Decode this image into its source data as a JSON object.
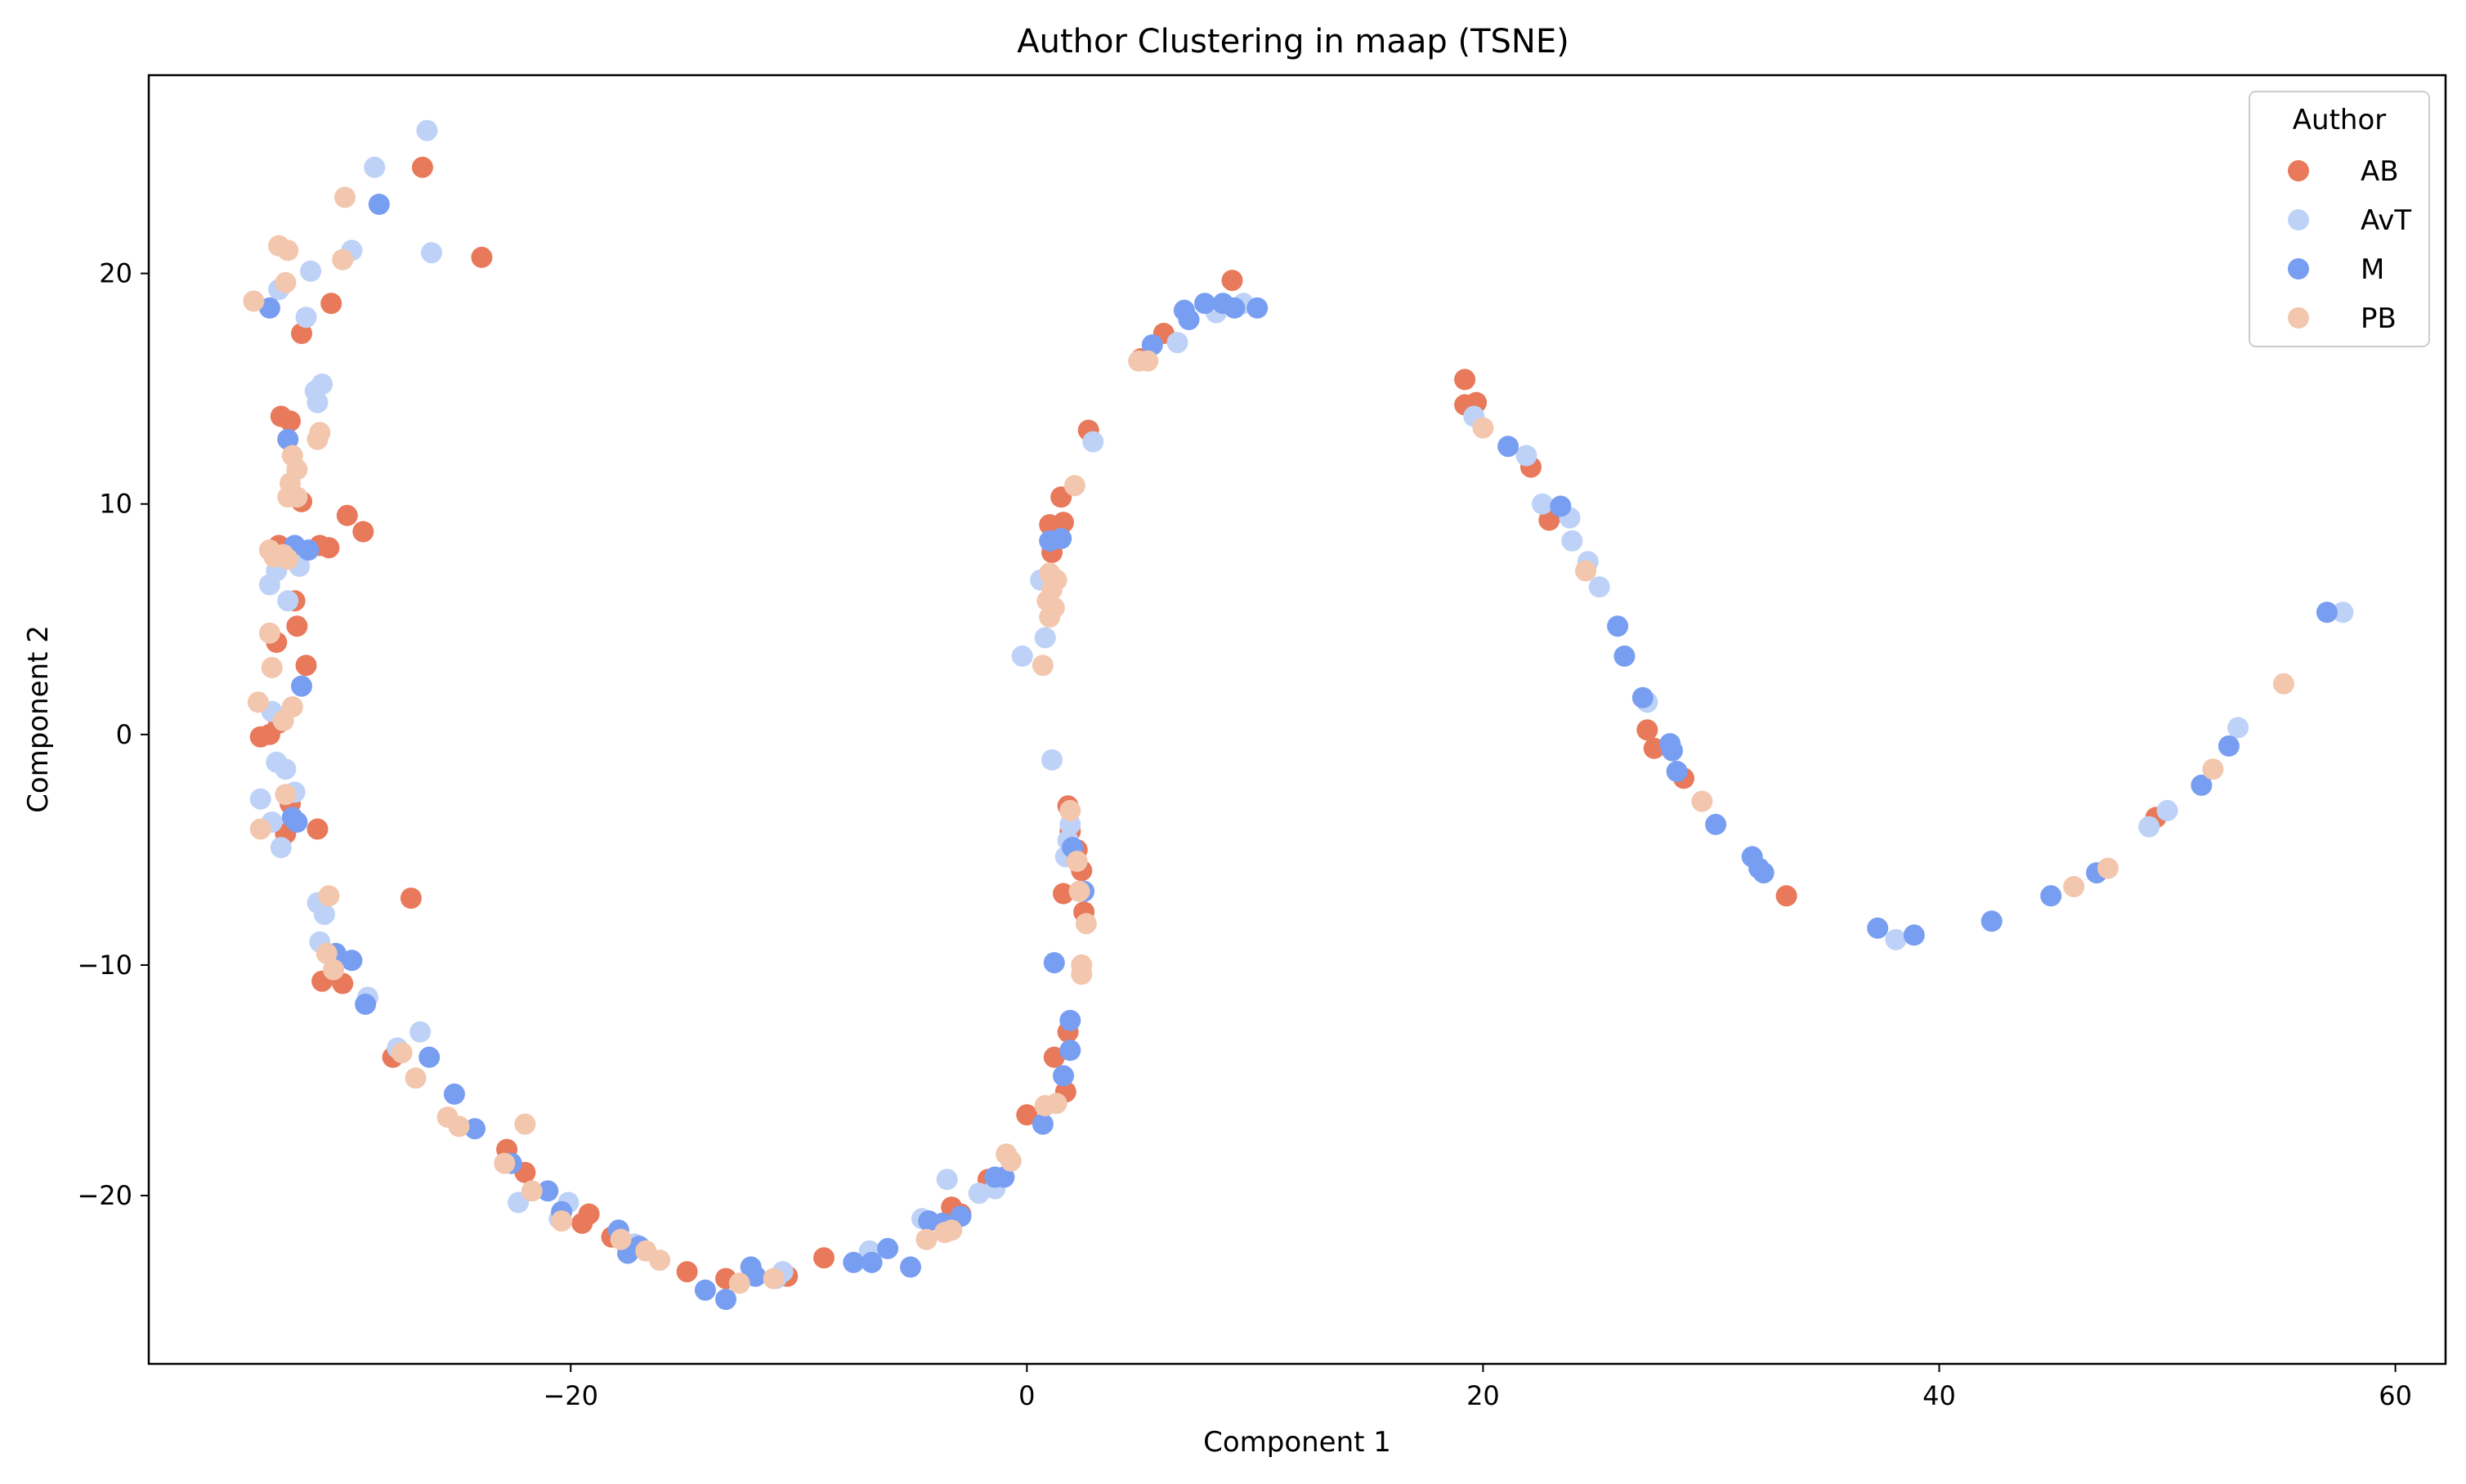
{
  "chart_data": {
    "type": "scatter",
    "title": "Author Clustering in maap (TSNE)",
    "xlabel": "Component 1",
    "ylabel": "Component 2",
    "xlim": [
      -38.5,
      62.2
    ],
    "ylim": [
      -27.3,
      28.6
    ],
    "xticks": [
      -20,
      0,
      20,
      40,
      60
    ],
    "yticks": [
      -20,
      -10,
      0,
      10,
      20
    ],
    "xtick_labels": [
      "−20",
      "0",
      "20",
      "40",
      "60"
    ],
    "ytick_labels": [
      "−20",
      "−10",
      "0",
      "10",
      "20"
    ],
    "grid": false,
    "legend": {
      "title": "Author",
      "position": "top-right"
    },
    "series": [
      {
        "name": "AB",
        "color": "#e8795a",
        "points": [
          [
            -26.5,
            24.6
          ],
          [
            -23.9,
            20.7
          ],
          [
            -30.5,
            18.7
          ],
          [
            -31.8,
            17.4
          ],
          [
            -32.7,
            13.8
          ],
          [
            -32.3,
            13.6
          ],
          [
            -31.8,
            10.1
          ],
          [
            -29.8,
            9.5
          ],
          [
            -29.1,
            8.8
          ],
          [
            -31.0,
            8.2
          ],
          [
            -30.6,
            8.1
          ],
          [
            -32.8,
            8.2
          ],
          [
            -32.1,
            5.8
          ],
          [
            -32.0,
            4.7
          ],
          [
            -32.9,
            4.0
          ],
          [
            -31.6,
            3.0
          ],
          [
            -33.6,
            -0.1
          ],
          [
            -33.2,
            0.0
          ],
          [
            -32.8,
            0.5
          ],
          [
            -32.3,
            -3.0
          ],
          [
            -32.5,
            -4.3
          ],
          [
            -31.1,
            -4.1
          ],
          [
            -27.0,
            -7.1
          ],
          [
            -30.9,
            -10.7
          ],
          [
            -30.0,
            -10.8
          ],
          [
            -27.8,
            -14.0
          ],
          [
            -22.8,
            -18.0
          ],
          [
            -22.0,
            -19.0
          ],
          [
            -19.5,
            -21.2
          ],
          [
            -19.2,
            -20.8
          ],
          [
            -18.2,
            -21.8
          ],
          [
            -14.9,
            -23.3
          ],
          [
            -13.2,
            -23.6
          ],
          [
            -10.5,
            -23.5
          ],
          [
            -8.9,
            -22.7
          ],
          [
            -3.3,
            -20.5
          ],
          [
            -2.9,
            -20.8
          ],
          [
            -1.7,
            -19.3
          ],
          [
            0.0,
            -16.5
          ],
          [
            1.0,
            9.1
          ],
          [
            1.5,
            10.3
          ],
          [
            1.6,
            9.2
          ],
          [
            1.1,
            7.9
          ],
          [
            2.7,
            13.2
          ],
          [
            1.9,
            -4.2
          ],
          [
            1.8,
            -3.1
          ],
          [
            2.4,
            -5.9
          ],
          [
            2.2,
            -5.0
          ],
          [
            2.5,
            -7.7
          ],
          [
            1.6,
            -6.9
          ],
          [
            1.8,
            -12.9
          ],
          [
            1.2,
            -14.0
          ],
          [
            1.7,
            -15.5
          ],
          [
            5.0,
            16.3
          ],
          [
            6.0,
            17.4
          ],
          [
            9.0,
            19.7
          ],
          [
            19.2,
            15.4
          ],
          [
            19.2,
            14.3
          ],
          [
            19.7,
            14.4
          ],
          [
            22.1,
            11.6
          ],
          [
            22.9,
            9.3
          ],
          [
            27.2,
            0.2
          ],
          [
            27.5,
            -0.6
          ],
          [
            28.8,
            -1.9
          ],
          [
            33.3,
            -7.0
          ],
          [
            49.5,
            -3.6
          ]
        ]
      },
      {
        "name": "AvT",
        "color": "#bdd2f6",
        "points": [
          [
            -26.3,
            26.2
          ],
          [
            -28.6,
            24.6
          ],
          [
            -26.1,
            20.9
          ],
          [
            -29.6,
            21.0
          ],
          [
            -32.8,
            19.3
          ],
          [
            -31.4,
            20.1
          ],
          [
            -31.6,
            18.1
          ],
          [
            -30.9,
            15.2
          ],
          [
            -31.2,
            14.9
          ],
          [
            -31.1,
            14.4
          ],
          [
            -33.2,
            6.5
          ],
          [
            -32.9,
            7.1
          ],
          [
            -31.9,
            7.3
          ],
          [
            -32.4,
            5.8
          ],
          [
            -33.1,
            1.0
          ],
          [
            -32.9,
            -1.2
          ],
          [
            -32.5,
            -1.5
          ],
          [
            -33.6,
            -2.8
          ],
          [
            -32.1,
            -2.5
          ],
          [
            -33.1,
            -3.8
          ],
          [
            -32.7,
            -4.9
          ],
          [
            -31.1,
            -7.3
          ],
          [
            -30.8,
            -7.8
          ],
          [
            -31.0,
            -9.0
          ],
          [
            -28.9,
            -11.4
          ],
          [
            -26.6,
            -12.9
          ],
          [
            -27.6,
            -13.6
          ],
          [
            -22.3,
            -20.3
          ],
          [
            -20.1,
            -20.3
          ],
          [
            -20.5,
            -21.0
          ],
          [
            -17.2,
            -22.1
          ],
          [
            -11.0,
            -23.6
          ],
          [
            -10.7,
            -23.3
          ],
          [
            -6.9,
            -22.4
          ],
          [
            -4.6,
            -21.0
          ],
          [
            -3.5,
            -19.3
          ],
          [
            -2.1,
            -19.9
          ],
          [
            -1.4,
            -19.7
          ],
          [
            -0.2,
            3.4
          ],
          [
            0.6,
            6.7
          ],
          [
            0.8,
            4.2
          ],
          [
            1.1,
            -1.1
          ],
          [
            1.8,
            -4.6
          ],
          [
            1.9,
            -3.9
          ],
          [
            1.7,
            -5.3
          ],
          [
            2.9,
            12.7
          ],
          [
            6.6,
            17.0
          ],
          [
            8.3,
            18.3
          ],
          [
            9.5,
            18.7
          ],
          [
            19.6,
            13.8
          ],
          [
            21.9,
            12.1
          ],
          [
            22.6,
            10.0
          ],
          [
            23.8,
            9.4
          ],
          [
            23.9,
            8.4
          ],
          [
            24.6,
            7.5
          ],
          [
            25.1,
            6.4
          ],
          [
            27.2,
            1.4
          ],
          [
            38.1,
            -8.9
          ],
          [
            49.2,
            -4.0
          ],
          [
            50.0,
            -3.3
          ],
          [
            53.1,
            0.3
          ],
          [
            57.7,
            5.3
          ]
        ]
      },
      {
        "name": "M",
        "color": "#789ef2",
        "points": [
          [
            -28.4,
            23.0
          ],
          [
            -33.2,
            18.5
          ],
          [
            -32.4,
            12.8
          ],
          [
            -32.1,
            8.2
          ],
          [
            -31.5,
            8.0
          ],
          [
            -31.8,
            2.1
          ],
          [
            -32.2,
            -3.6
          ],
          [
            -32.0,
            -3.8
          ],
          [
            -30.3,
            -9.5
          ],
          [
            -29.6,
            -9.8
          ],
          [
            -29.0,
            -11.7
          ],
          [
            -26.2,
            -14.0
          ],
          [
            -25.1,
            -15.6
          ],
          [
            -24.2,
            -17.1
          ],
          [
            -22.6,
            -18.6
          ],
          [
            -21.0,
            -19.8
          ],
          [
            -20.4,
            -20.7
          ],
          [
            -17.9,
            -21.5
          ],
          [
            -17.5,
            -22.5
          ],
          [
            -17.0,
            -22.2
          ],
          [
            -13.2,
            -24.5
          ],
          [
            -14.1,
            -24.1
          ],
          [
            -12.1,
            -23.1
          ],
          [
            -11.9,
            -23.5
          ],
          [
            -7.6,
            -22.9
          ],
          [
            -6.8,
            -22.9
          ],
          [
            -6.1,
            -22.3
          ],
          [
            -5.1,
            -23.1
          ],
          [
            -4.3,
            -21.1
          ],
          [
            -3.7,
            -21.2
          ],
          [
            -2.9,
            -20.9
          ],
          [
            -1.4,
            -19.2
          ],
          [
            -1.0,
            -19.2
          ],
          [
            0.7,
            -16.9
          ],
          [
            1.0,
            8.4
          ],
          [
            1.5,
            8.5
          ],
          [
            1.2,
            -9.9
          ],
          [
            1.6,
            -14.8
          ],
          [
            1.9,
            -13.7
          ],
          [
            1.9,
            -12.4
          ],
          [
            2.0,
            -4.9
          ],
          [
            2.5,
            -6.8
          ],
          [
            5.5,
            16.9
          ],
          [
            6.9,
            18.4
          ],
          [
            7.1,
            18.0
          ],
          [
            7.8,
            18.7
          ],
          [
            8.6,
            18.7
          ],
          [
            9.1,
            18.5
          ],
          [
            10.1,
            18.5
          ],
          [
            21.1,
            12.5
          ],
          [
            23.4,
            9.9
          ],
          [
            25.9,
            4.7
          ],
          [
            26.2,
            3.4
          ],
          [
            27.0,
            1.6
          ],
          [
            28.2,
            -0.4
          ],
          [
            28.3,
            -0.7
          ],
          [
            28.5,
            -1.6
          ],
          [
            30.2,
            -3.9
          ],
          [
            31.8,
            -5.3
          ],
          [
            32.1,
            -5.8
          ],
          [
            32.3,
            -6.0
          ],
          [
            37.3,
            -8.4
          ],
          [
            38.9,
            -8.7
          ],
          [
            42.3,
            -8.1
          ],
          [
            44.9,
            -7.0
          ],
          [
            46.9,
            -6.0
          ],
          [
            51.5,
            -2.2
          ],
          [
            52.7,
            -0.5
          ],
          [
            57.0,
            5.3
          ]
        ]
      },
      {
        "name": "PB",
        "color": "#f3c6ae",
        "points": [
          [
            -29.9,
            23.3
          ],
          [
            -30.0,
            20.6
          ],
          [
            -33.9,
            18.8
          ],
          [
            -32.8,
            21.2
          ],
          [
            -32.4,
            21.0
          ],
          [
            -32.5,
            19.6
          ],
          [
            -31.0,
            13.1
          ],
          [
            -31.1,
            12.8
          ],
          [
            -32.2,
            12.1
          ],
          [
            -32.0,
            11.5
          ],
          [
            -32.3,
            10.9
          ],
          [
            -32.0,
            10.3
          ],
          [
            -32.4,
            10.3
          ],
          [
            -33.2,
            8.0
          ],
          [
            -33.0,
            7.7
          ],
          [
            -32.6,
            7.8
          ],
          [
            -32.4,
            7.6
          ],
          [
            -33.2,
            4.4
          ],
          [
            -33.1,
            2.9
          ],
          [
            -33.7,
            1.4
          ],
          [
            -32.2,
            1.2
          ],
          [
            -32.6,
            0.6
          ],
          [
            -32.5,
            -2.6
          ],
          [
            -33.6,
            -4.1
          ],
          [
            -30.6,
            -7.0
          ],
          [
            -30.7,
            -9.5
          ],
          [
            -30.4,
            -10.2
          ],
          [
            -27.4,
            -13.8
          ],
          [
            -26.8,
            -14.9
          ],
          [
            -25.4,
            -16.6
          ],
          [
            -24.9,
            -17.0
          ],
          [
            -22.0,
            -16.9
          ],
          [
            -22.9,
            -18.6
          ],
          [
            -21.7,
            -19.8
          ],
          [
            -20.4,
            -21.1
          ],
          [
            -17.8,
            -21.9
          ],
          [
            -16.7,
            -22.4
          ],
          [
            -16.1,
            -22.8
          ],
          [
            -12.6,
            -23.8
          ],
          [
            -11.1,
            -23.6
          ],
          [
            -4.4,
            -21.9
          ],
          [
            -3.6,
            -21.6
          ],
          [
            -3.3,
            -21.5
          ],
          [
            -0.9,
            -18.2
          ],
          [
            -0.7,
            -18.5
          ],
          [
            0.7,
            3.0
          ],
          [
            0.9,
            5.8
          ],
          [
            1.0,
            5.1
          ],
          [
            1.1,
            6.3
          ],
          [
            1.2,
            5.5
          ],
          [
            1.3,
            6.7
          ],
          [
            1.0,
            7.0
          ],
          [
            2.1,
            10.8
          ],
          [
            1.9,
            -3.3
          ],
          [
            2.3,
            -6.8
          ],
          [
            2.2,
            -5.5
          ],
          [
            2.4,
            -10.0
          ],
          [
            2.4,
            -10.4
          ],
          [
            2.6,
            -8.2
          ],
          [
            0.8,
            -16.1
          ],
          [
            1.3,
            -16.0
          ],
          [
            4.9,
            16.2
          ],
          [
            5.3,
            16.2
          ],
          [
            20.0,
            13.3
          ],
          [
            24.5,
            7.1
          ],
          [
            29.6,
            -2.9
          ],
          [
            45.9,
            -6.6
          ],
          [
            47.4,
            -5.8
          ],
          [
            52.0,
            -1.5
          ],
          [
            55.1,
            2.2
          ]
        ]
      }
    ]
  }
}
